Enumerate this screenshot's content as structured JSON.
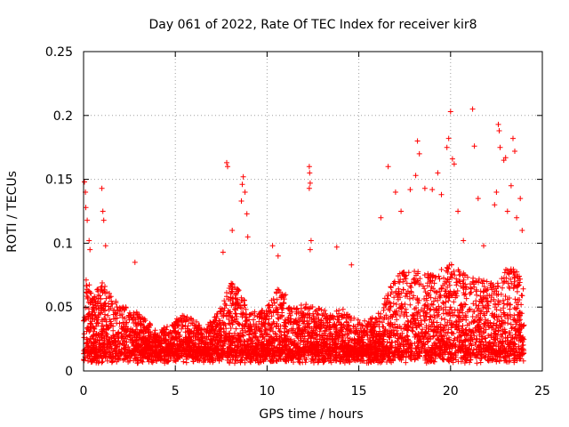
{
  "chart_data": {
    "type": "scatter",
    "title": "Day 061 of 2022, Rate Of TEC Index for receiver kir8",
    "xlabel": "GPS time / hours",
    "ylabel": "ROTI / TECUs",
    "xlim": [
      0,
      25
    ],
    "ylim": [
      0,
      0.25
    ],
    "xticks": [
      0,
      5,
      10,
      15,
      20,
      25
    ],
    "yticks": [
      0,
      0.05,
      0.1,
      0.15,
      0.2,
      0.25
    ],
    "xtick_labels": [
      "0",
      "5",
      "10",
      "15",
      "20",
      "25"
    ],
    "ytick_labels": [
      "0",
      "0.05",
      "0.1",
      "0.15",
      "0.2",
      "0.25"
    ],
    "grid": true,
    "marker": "plus",
    "color": "#ff0000",
    "envelope": {
      "description_hours": [
        0,
        0.5,
        1,
        1.5,
        2,
        2.5,
        3,
        3.5,
        4,
        4.5,
        5,
        5.5,
        6,
        6.5,
        7,
        7.5,
        8,
        8.5,
        9,
        9.5,
        10,
        10.5,
        11,
        11.5,
        12,
        12.5,
        13,
        13.5,
        14,
        14.5,
        15,
        15.5,
        16,
        16.5,
        17,
        17.5,
        18,
        18.5,
        19,
        19.5,
        20,
        20.5,
        21,
        21.5,
        22,
        22.5,
        23,
        23.5,
        24
      ],
      "typical_max": [
        0.08,
        0.06,
        0.07,
        0.06,
        0.05,
        0.05,
        0.045,
        0.04,
        0.03,
        0.035,
        0.04,
        0.045,
        0.04,
        0.035,
        0.04,
        0.05,
        0.07,
        0.065,
        0.05,
        0.045,
        0.05,
        0.065,
        0.06,
        0.05,
        0.055,
        0.05,
        0.05,
        0.045,
        0.05,
        0.045,
        0.04,
        0.04,
        0.045,
        0.06,
        0.075,
        0.08,
        0.08,
        0.08,
        0.075,
        0.08,
        0.085,
        0.08,
        0.075,
        0.075,
        0.07,
        0.07,
        0.08,
        0.08,
        0.07
      ]
    },
    "outliers": [
      {
        "x": 0.05,
        "y": 0.148
      },
      {
        "x": 0.1,
        "y": 0.14
      },
      {
        "x": 0.12,
        "y": 0.128
      },
      {
        "x": 0.2,
        "y": 0.118
      },
      {
        "x": 0.3,
        "y": 0.102
      },
      {
        "x": 0.35,
        "y": 0.095
      },
      {
        "x": 1.0,
        "y": 0.143
      },
      {
        "x": 1.05,
        "y": 0.125
      },
      {
        "x": 1.1,
        "y": 0.118
      },
      {
        "x": 1.2,
        "y": 0.098
      },
      {
        "x": 2.8,
        "y": 0.085
      },
      {
        "x": 7.8,
        "y": 0.163
      },
      {
        "x": 7.85,
        "y": 0.16
      },
      {
        "x": 8.7,
        "y": 0.152
      },
      {
        "x": 8.65,
        "y": 0.146
      },
      {
        "x": 8.8,
        "y": 0.14
      },
      {
        "x": 8.9,
        "y": 0.123
      },
      {
        "x": 8.6,
        "y": 0.133
      },
      {
        "x": 8.1,
        "y": 0.11
      },
      {
        "x": 7.6,
        "y": 0.093
      },
      {
        "x": 8.95,
        "y": 0.105
      },
      {
        "x": 10.3,
        "y": 0.098
      },
      {
        "x": 10.6,
        "y": 0.09
      },
      {
        "x": 12.3,
        "y": 0.16
      },
      {
        "x": 12.32,
        "y": 0.155
      },
      {
        "x": 12.35,
        "y": 0.147
      },
      {
        "x": 12.3,
        "y": 0.143
      },
      {
        "x": 12.4,
        "y": 0.102
      },
      {
        "x": 12.35,
        "y": 0.095
      },
      {
        "x": 13.8,
        "y": 0.097
      },
      {
        "x": 14.6,
        "y": 0.083
      },
      {
        "x": 16.2,
        "y": 0.12
      },
      {
        "x": 16.6,
        "y": 0.16
      },
      {
        "x": 17.0,
        "y": 0.14
      },
      {
        "x": 17.3,
        "y": 0.125
      },
      {
        "x": 18.2,
        "y": 0.18
      },
      {
        "x": 18.3,
        "y": 0.17
      },
      {
        "x": 18.1,
        "y": 0.153
      },
      {
        "x": 17.8,
        "y": 0.142
      },
      {
        "x": 18.6,
        "y": 0.143
      },
      {
        "x": 19.0,
        "y": 0.142
      },
      {
        "x": 19.3,
        "y": 0.155
      },
      {
        "x": 19.5,
        "y": 0.138
      },
      {
        "x": 19.8,
        "y": 0.175
      },
      {
        "x": 19.9,
        "y": 0.182
      },
      {
        "x": 20.0,
        "y": 0.203
      },
      {
        "x": 20.1,
        "y": 0.166
      },
      {
        "x": 20.2,
        "y": 0.162
      },
      {
        "x": 20.4,
        "y": 0.125
      },
      {
        "x": 21.2,
        "y": 0.205
      },
      {
        "x": 21.3,
        "y": 0.176
      },
      {
        "x": 21.5,
        "y": 0.135
      },
      {
        "x": 22.6,
        "y": 0.193
      },
      {
        "x": 22.65,
        "y": 0.188
      },
      {
        "x": 22.7,
        "y": 0.175
      },
      {
        "x": 22.9,
        "y": 0.165
      },
      {
        "x": 23.0,
        "y": 0.167
      },
      {
        "x": 22.5,
        "y": 0.14
      },
      {
        "x": 22.4,
        "y": 0.13
      },
      {
        "x": 23.4,
        "y": 0.182
      },
      {
        "x": 23.5,
        "y": 0.172
      },
      {
        "x": 23.3,
        "y": 0.145
      },
      {
        "x": 23.1,
        "y": 0.125
      },
      {
        "x": 23.6,
        "y": 0.12
      },
      {
        "x": 23.8,
        "y": 0.135
      },
      {
        "x": 23.9,
        "y": 0.11
      },
      {
        "x": 20.7,
        "y": 0.102
      },
      {
        "x": 21.8,
        "y": 0.098
      }
    ]
  }
}
